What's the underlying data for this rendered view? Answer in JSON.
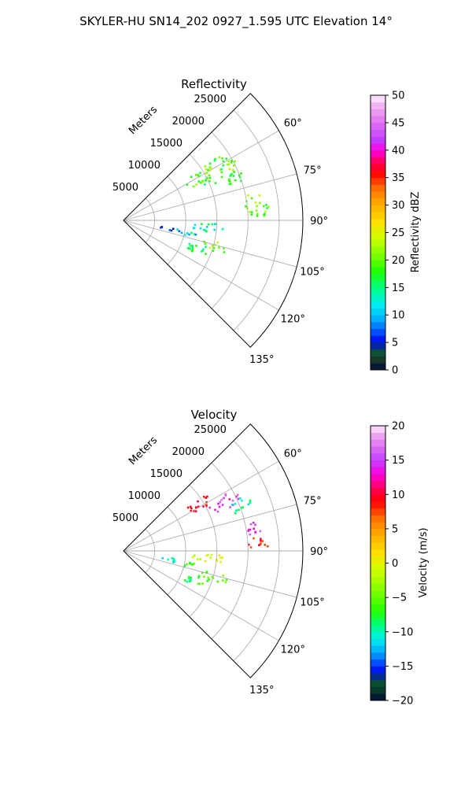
{
  "figure_title": "SKYLER-HU  SN14_202  0927_1.595 UTC Elevation 14°",
  "colors": {
    "grid": "#b0b0b0",
    "frame": "#000000",
    "background": "#ffffff"
  },
  "chart_data": [
    {
      "type": "polar-sector",
      "title": "Reflectivity",
      "range_label": "Meters",
      "theta_range_deg": [
        45,
        135
      ],
      "theta_direction": "clockwise-from-north",
      "r_range": [
        0,
        28800
      ],
      "r_ticks": [
        5000,
        10000,
        15000,
        20000,
        25000
      ],
      "r_tick_labels": [
        "5000",
        "10000",
        "15000",
        "20000",
        "25000"
      ],
      "theta_ticks": [
        60,
        75,
        90,
        105,
        120,
        135
      ],
      "theta_tick_labels": [
        "60°",
        "75°",
        "90°",
        "105°",
        "120°",
        "135°"
      ],
      "grid": true,
      "colorbar": {
        "label": "Reflectivity dBZ",
        "min": 0,
        "max": 50,
        "ticks": [
          0,
          5,
          10,
          15,
          20,
          25,
          30,
          35,
          40,
          45,
          50
        ],
        "tick_labels": [
          "0",
          "5",
          "10",
          "15",
          "20",
          "25",
          "30",
          "35",
          "40",
          "45",
          "50"
        ],
        "stops": [
          {
            "v": 0,
            "c": "#000a3c"
          },
          {
            "v": 2,
            "c": "#1a3a2a"
          },
          {
            "v": 3.5,
            "c": "#0a5a3a"
          },
          {
            "v": 5,
            "c": "#0000e6"
          },
          {
            "v": 7,
            "c": "#0050ff"
          },
          {
            "v": 9,
            "c": "#00a8ff"
          },
          {
            "v": 12,
            "c": "#00f0f0"
          },
          {
            "v": 15,
            "c": "#00ff80"
          },
          {
            "v": 18,
            "c": "#20ff00"
          },
          {
            "v": 21,
            "c": "#80ff00"
          },
          {
            "v": 24,
            "c": "#d0ff00"
          },
          {
            "v": 27,
            "c": "#ffe000"
          },
          {
            "v": 30,
            "c": "#ffb000"
          },
          {
            "v": 33,
            "c": "#ff7000"
          },
          {
            "v": 36,
            "c": "#ff0000"
          },
          {
            "v": 38,
            "c": "#ff0060"
          },
          {
            "v": 40,
            "c": "#ff00e0"
          },
          {
            "v": 42,
            "c": "#c040ff"
          },
          {
            "v": 45,
            "c": "#e070f0"
          },
          {
            "v": 48,
            "c": "#f0b0f0"
          },
          {
            "v": 50,
            "c": "#fff0ff"
          }
        ]
      },
      "echo_regions": [
        {
          "theta": [
            55,
            68
          ],
          "r": [
            11500,
            20500
          ],
          "value": [
            15,
            24
          ]
        },
        {
          "theta": [
            64,
            72
          ],
          "r": [
            16500,
            22000
          ],
          "value": [
            14,
            20
          ]
        },
        {
          "theta": [
            77,
            90
          ],
          "r": [
            19500,
            23500
          ],
          "value": [
            15,
            24
          ]
        },
        {
          "theta": [
            92,
            98
          ],
          "r": [
            11000,
            16500
          ],
          "value": [
            10,
            18
          ]
        },
        {
          "theta": [
            100,
            105
          ],
          "r": [
            9500,
            12500
          ],
          "value": [
            8,
            16
          ]
        },
        {
          "theta": [
            103,
            109
          ],
          "r": [
            13000,
            17500
          ],
          "value": [
            15,
            24
          ]
        },
        {
          "theta": [
            108,
            114
          ],
          "r": [
            11000,
            14500
          ],
          "value": [
            12,
            20
          ]
        },
        {
          "theta": [
            111,
            117
          ],
          "r": [
            10500,
            12500
          ],
          "value": [
            14,
            20
          ]
        },
        {
          "theta": [
            98,
            103
          ],
          "r": [
            6000,
            9500
          ],
          "value": [
            4,
            12
          ]
        }
      ]
    },
    {
      "type": "polar-sector",
      "title": "Velocity",
      "range_label": "Meters",
      "theta_range_deg": [
        45,
        135
      ],
      "theta_direction": "clockwise-from-north",
      "r_range": [
        0,
        28800
      ],
      "r_ticks": [
        5000,
        10000,
        15000,
        20000,
        25000
      ],
      "r_tick_labels": [
        "5000",
        "10000",
        "15000",
        "20000",
        "25000"
      ],
      "theta_ticks": [
        60,
        75,
        90,
        105,
        120,
        135
      ],
      "theta_tick_labels": [
        "60°",
        "75°",
        "90°",
        "105°",
        "120°",
        "135°"
      ],
      "grid": true,
      "colorbar": {
        "label": "Velocity (m/s)",
        "min": -20,
        "max": 20,
        "ticks": [
          -20,
          -15,
          -10,
          -5,
          0,
          5,
          10,
          15,
          20
        ],
        "tick_labels": [
          "−20",
          "−15",
          "−10",
          "−5",
          "0",
          "5",
          "10",
          "15",
          "20"
        ],
        "stops": [
          {
            "v": -20,
            "c": "#000a3c"
          },
          {
            "v": -18.5,
            "c": "#0a3a2a"
          },
          {
            "v": -17,
            "c": "#0a5a3a"
          },
          {
            "v": -16,
            "c": "#0000e6"
          },
          {
            "v": -14.5,
            "c": "#0050ff"
          },
          {
            "v": -13,
            "c": "#00a8ff"
          },
          {
            "v": -11,
            "c": "#00f0f0"
          },
          {
            "v": -9,
            "c": "#00ff80"
          },
          {
            "v": -7,
            "c": "#20ff00"
          },
          {
            "v": -4,
            "c": "#80ff00"
          },
          {
            "v": -1,
            "c": "#d0ff00"
          },
          {
            "v": 1.5,
            "c": "#ffe000"
          },
          {
            "v": 4,
            "c": "#ffb000"
          },
          {
            "v": 6.5,
            "c": "#ff7000"
          },
          {
            "v": 9,
            "c": "#ff0000"
          },
          {
            "v": 11,
            "c": "#ff0060"
          },
          {
            "v": 13,
            "c": "#ff00e0"
          },
          {
            "v": 15,
            "c": "#c040ff"
          },
          {
            "v": 17,
            "c": "#e070f0"
          },
          {
            "v": 19,
            "c": "#f0b0f0"
          },
          {
            "v": 20,
            "c": "#fff0ff"
          }
        ]
      },
      "echo_regions": [
        {
          "theta": [
            55,
            62
          ],
          "r": [
            11500,
            16500
          ],
          "value": [
            8,
            11
          ]
        },
        {
          "theta": [
            60,
            68
          ],
          "r": [
            15000,
            20500
          ],
          "value": [
            12,
            17
          ]
        },
        {
          "theta": [
            64,
            72
          ],
          "r": [
            18000,
            22000
          ],
          "value": [
            -12,
            -8
          ]
        },
        {
          "theta": [
            77,
            84
          ],
          "r": [
            19500,
            23000
          ],
          "value": [
            12,
            17
          ]
        },
        {
          "theta": [
            84,
            90
          ],
          "r": [
            20000,
            23500
          ],
          "value": [
            7,
            11
          ]
        },
        {
          "theta": [
            92,
            98
          ],
          "r": [
            11000,
            16500
          ],
          "value": [
            -3,
            2
          ]
        },
        {
          "theta": [
            100,
            105
          ],
          "r": [
            9500,
            12500
          ],
          "value": [
            -9,
            -4
          ]
        },
        {
          "theta": [
            103,
            109
          ],
          "r": [
            13000,
            17500
          ],
          "value": [
            -7,
            -3
          ]
        },
        {
          "theta": [
            108,
            114
          ],
          "r": [
            11000,
            14500
          ],
          "value": [
            -8,
            -4
          ]
        },
        {
          "theta": [
            111,
            117
          ],
          "r": [
            10500,
            12500
          ],
          "value": [
            -11,
            -7
          ]
        },
        {
          "theta": [
            98,
            103
          ],
          "r": [
            6000,
            9500
          ],
          "value": [
            -12,
            -8
          ]
        }
      ]
    }
  ]
}
